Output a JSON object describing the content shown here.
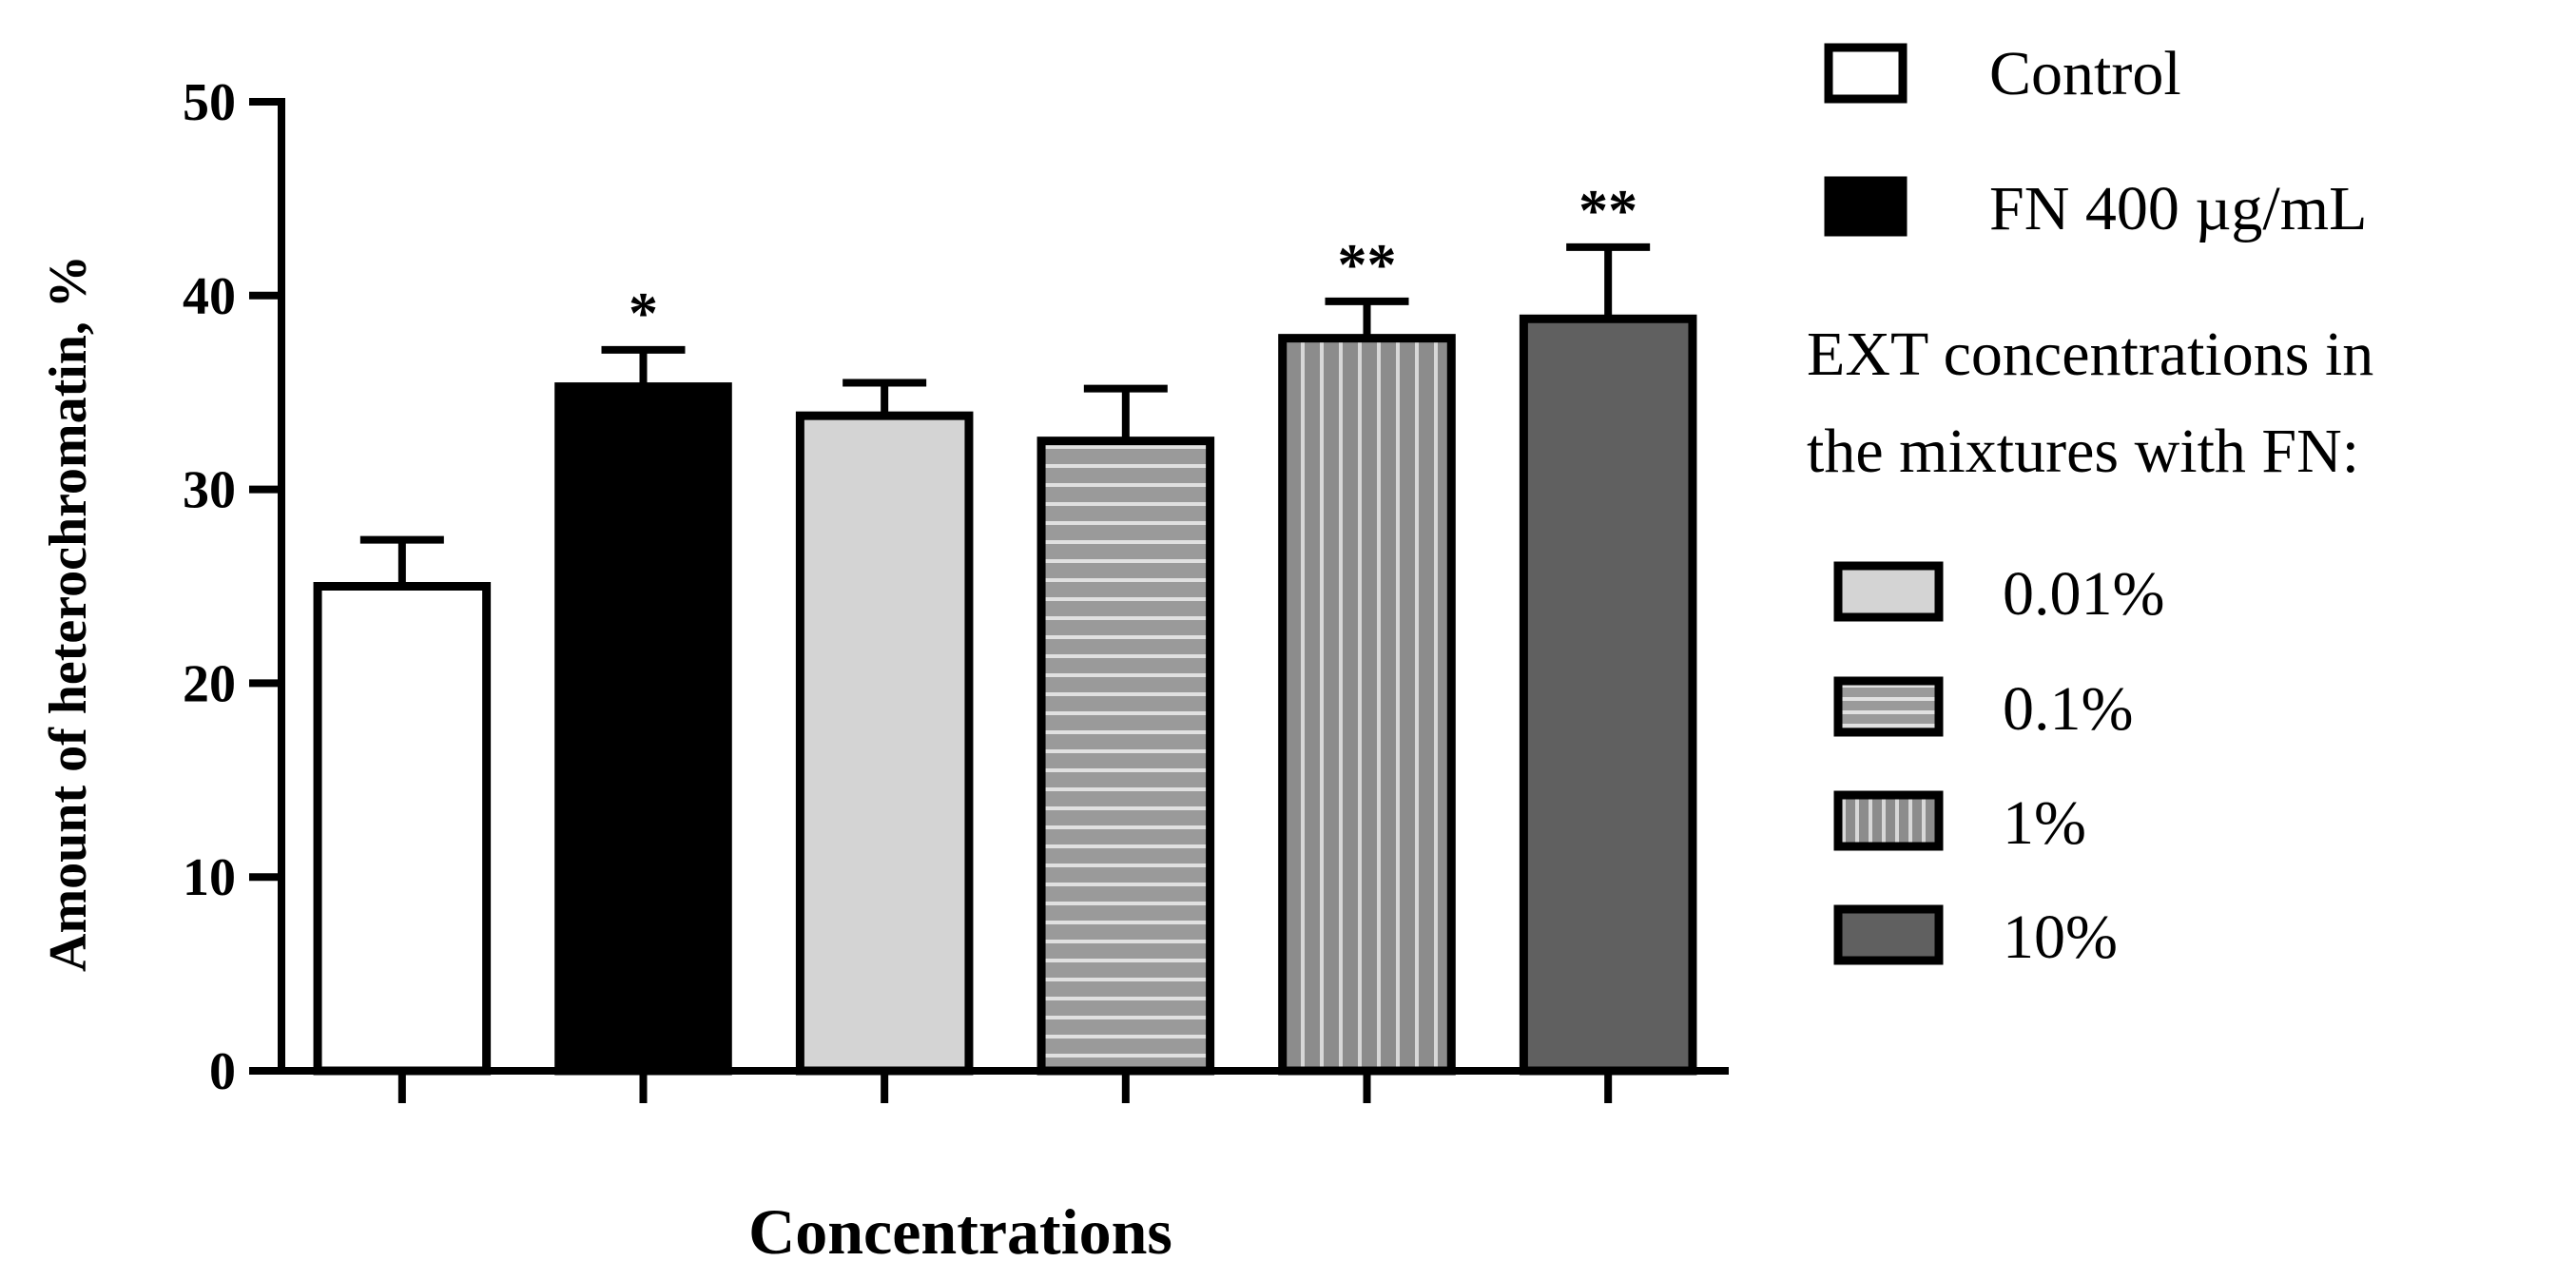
{
  "chart_data": {
    "type": "bar",
    "title": "",
    "xlabel": "Concentrations",
    "ylabel": "Amount of heterochromatin, %",
    "ylim": [
      0,
      50
    ],
    "yticks": [
      "0",
      "10",
      "20",
      "30",
      "40",
      "50"
    ],
    "grid": false,
    "legend_position": "right",
    "bars": [
      {
        "series": "Control",
        "value": 25.0,
        "error": 2.4,
        "significance": ""
      },
      {
        "series": "FN 400 µg/mL",
        "value": 35.3,
        "error": 1.9,
        "significance": "*"
      },
      {
        "series": "0.01%",
        "value": 33.8,
        "error": 1.7,
        "significance": ""
      },
      {
        "series": "0.1%",
        "value": 32.5,
        "error": 2.7,
        "significance": ""
      },
      {
        "series": "1%",
        "value": 37.8,
        "error": 1.9,
        "significance": "**"
      },
      {
        "series": "10%",
        "value": 38.8,
        "error": 3.7,
        "significance": "**"
      }
    ],
    "legend": {
      "top_entries": [
        {
          "label": "Control",
          "pattern": "white"
        },
        {
          "label": "FN 400 µg/mL",
          "pattern": "black"
        }
      ],
      "group_title_line1": "EXT concentrations in",
      "group_title_line2": "the mixtures with FN:",
      "group_entries": [
        {
          "label": "0.01%",
          "pattern": "lightgray"
        },
        {
          "label": "0.1%",
          "pattern": "hstripes"
        },
        {
          "label": "1%",
          "pattern": "vstripes"
        },
        {
          "label": "10%",
          "pattern": "darkgray"
        }
      ]
    },
    "colors": {
      "white": "#ffffff",
      "black": "#000000",
      "lightgray": "#d4d4d4",
      "stripe_bg": "#9a9a9a",
      "stripe_line": "#e0e0e0",
      "darkgray": "#606060",
      "outline": "#000000"
    }
  }
}
